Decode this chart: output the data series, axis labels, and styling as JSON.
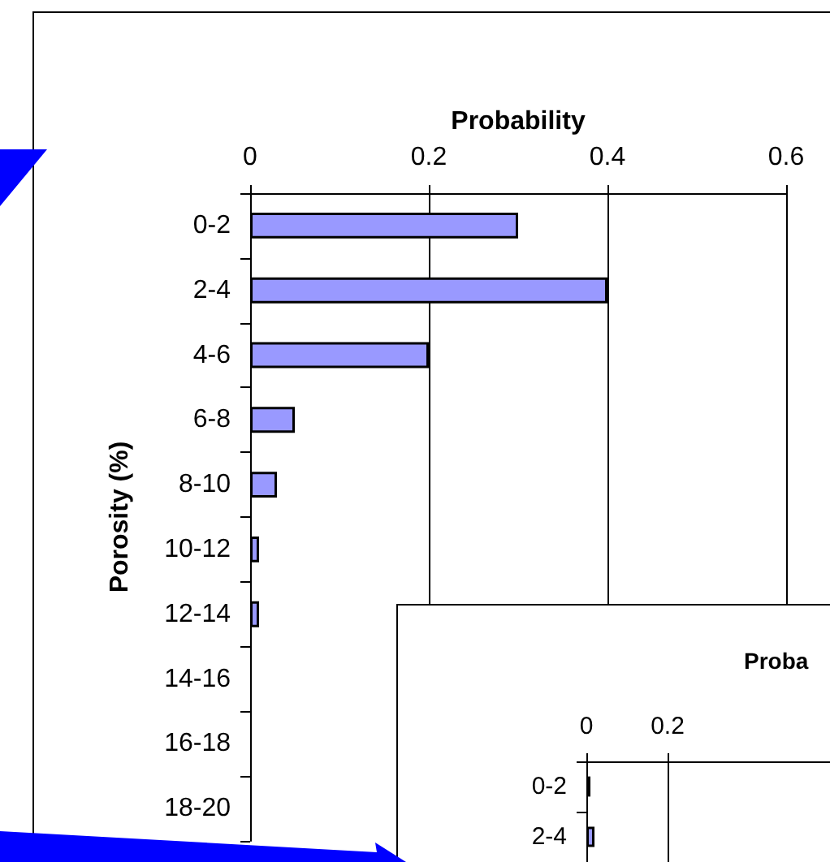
{
  "chart_data": [
    {
      "type": "bar",
      "orientation": "horizontal",
      "xlabel": "Probability",
      "ylabel": "Porosity (%)",
      "categories": [
        "0-2",
        "2-4",
        "4-6",
        "6-8",
        "8-10",
        "10-12",
        "12-14",
        "14-16",
        "16-18",
        "18-20"
      ],
      "values": [
        0.3,
        0.4,
        0.2,
        0.05,
        0.03,
        0.01,
        0.01,
        0,
        0,
        0
      ],
      "color": "#9999ff",
      "xlim": [
        0,
        0.6
      ],
      "xticks": [
        0,
        0.2,
        0.4,
        0.6
      ],
      "grid": "x"
    },
    {
      "type": "bar",
      "orientation": "horizontal",
      "xlabel": "Proba",
      "categories": [
        "0-2",
        "2-4"
      ],
      "values": [
        0.01,
        0.02
      ],
      "color": "#9999ff",
      "xlim": [
        0,
        0.6
      ],
      "xticks": [
        0,
        0.2
      ],
      "grid": "x"
    }
  ]
}
